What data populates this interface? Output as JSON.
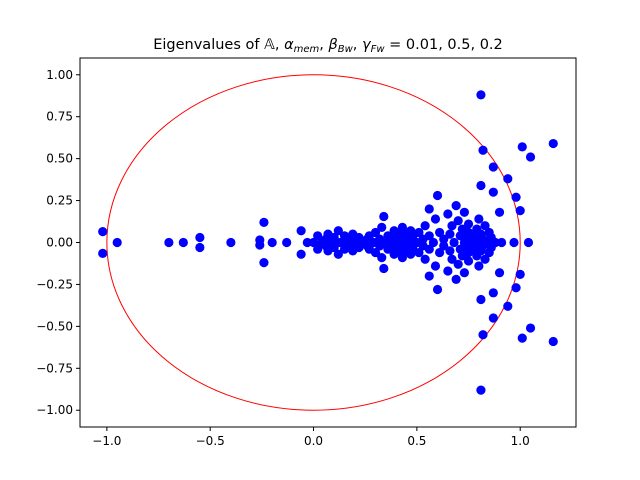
{
  "chart_data": {
    "type": "scatter",
    "title": "Eigenvalues of 𝔸, α",
    "title_parts": {
      "prefix": "Eigenvalues of ",
      "A": "𝔸",
      "alpha": "α",
      "mem": "mem",
      "beta": "β",
      "Bw": "Bw",
      "gamma": "γ",
      "Fw": "Fw",
      "values": "= 0.01, 0.5, 0.2"
    },
    "xlabel": "",
    "ylabel": "",
    "xlim": [
      -1.13,
      1.27
    ],
    "ylim": [
      -1.1,
      1.1
    ],
    "xticks": [
      -1.0,
      -0.5,
      0.0,
      0.5,
      1.0
    ],
    "xtick_labels": [
      "−1.0",
      "−0.5",
      "0.0",
      "0.5",
      "1.0"
    ],
    "yticks": [
      1.0,
      0.75,
      0.5,
      0.25,
      0.0,
      -0.25,
      -0.5,
      -0.75,
      -1.0
    ],
    "ytick_labels": [
      "1.00",
      "0.75",
      "0.50",
      "0.25",
      "0.00",
      "−0.25",
      "−0.50",
      "−0.75",
      "−1.00"
    ],
    "grid": false,
    "colors": {
      "points": "#0000ff",
      "circle": "#ff0000",
      "axes": "#000000"
    },
    "unit_circle": {
      "center": [
        0,
        0
      ],
      "radius": 1
    },
    "series": [
      {
        "values": [
          [
            -1.02,
            0.065
          ],
          [
            -1.02,
            -0.065
          ],
          [
            -0.95,
            0.0
          ],
          [
            -0.7,
            0.0
          ],
          [
            -0.63,
            0.0
          ],
          [
            -0.55,
            0.03
          ],
          [
            -0.55,
            -0.03
          ],
          [
            -0.4,
            0.0
          ],
          [
            -0.26,
            0.015
          ],
          [
            -0.26,
            -0.015
          ],
          [
            -0.24,
            0.12
          ],
          [
            -0.24,
            -0.12
          ],
          [
            -0.2,
            0.0
          ],
          [
            -0.13,
            0.0
          ],
          [
            -0.06,
            0.07
          ],
          [
            -0.06,
            -0.07
          ],
          [
            -0.03,
            0.0
          ],
          [
            0.0,
            0.0
          ],
          [
            0.02,
            0.04
          ],
          [
            0.02,
            -0.04
          ],
          [
            0.04,
            0.0
          ],
          [
            0.06,
            0.02
          ],
          [
            0.06,
            -0.02
          ],
          [
            0.07,
            0.05
          ],
          [
            0.07,
            -0.05
          ],
          [
            0.09,
            0.0
          ],
          [
            0.1,
            0.03
          ],
          [
            0.1,
            -0.03
          ],
          [
            0.12,
            0.07
          ],
          [
            0.12,
            -0.07
          ],
          [
            0.13,
            0.0
          ],
          [
            0.15,
            0.04
          ],
          [
            0.15,
            -0.04
          ],
          [
            0.17,
            0.01
          ],
          [
            0.17,
            -0.01
          ],
          [
            0.19,
            0.05
          ],
          [
            0.19,
            -0.05
          ],
          [
            0.2,
            0.0
          ],
          [
            0.22,
            0.03
          ],
          [
            0.22,
            -0.03
          ],
          [
            0.24,
            0.0
          ],
          [
            0.26,
            0.02
          ],
          [
            0.26,
            -0.02
          ],
          [
            0.27,
            0.04
          ],
          [
            0.27,
            -0.04
          ],
          [
            0.29,
            0.0
          ],
          [
            0.3,
            0.06
          ],
          [
            0.3,
            -0.06
          ],
          [
            0.32,
            0.02
          ],
          [
            0.32,
            -0.02
          ],
          [
            0.33,
            0.09
          ],
          [
            0.33,
            -0.09
          ],
          [
            0.34,
            0.155
          ],
          [
            0.34,
            -0.155
          ],
          [
            0.35,
            0.0
          ],
          [
            0.36,
            0.04
          ],
          [
            0.36,
            -0.04
          ],
          [
            0.38,
            0.02
          ],
          [
            0.38,
            -0.02
          ],
          [
            0.39,
            0.07
          ],
          [
            0.39,
            -0.07
          ],
          [
            0.4,
            0.0
          ],
          [
            0.41,
            0.05
          ],
          [
            0.41,
            -0.05
          ],
          [
            0.42,
            0.03
          ],
          [
            0.42,
            -0.03
          ],
          [
            0.43,
            0.09
          ],
          [
            0.43,
            -0.09
          ],
          [
            0.44,
            0.01
          ],
          [
            0.44,
            -0.01
          ],
          [
            0.45,
            0.05
          ],
          [
            0.45,
            -0.05
          ],
          [
            0.46,
            0.0
          ],
          [
            0.47,
            0.07
          ],
          [
            0.47,
            -0.07
          ],
          [
            0.48,
            0.03
          ],
          [
            0.48,
            -0.03
          ],
          [
            0.5,
            0.0
          ],
          [
            0.51,
            0.06
          ],
          [
            0.51,
            -0.06
          ],
          [
            0.53,
            0.02
          ],
          [
            0.53,
            -0.02
          ],
          [
            0.54,
            0.1
          ],
          [
            0.54,
            -0.1
          ],
          [
            0.56,
            0.04
          ],
          [
            0.56,
            -0.04
          ],
          [
            0.56,
            0.2
          ],
          [
            0.56,
            -0.2
          ],
          [
            0.58,
            0.0
          ],
          [
            0.59,
            0.14
          ],
          [
            0.59,
            -0.14
          ],
          [
            0.6,
            0.28
          ],
          [
            0.6,
            -0.28
          ],
          [
            0.61,
            0.06
          ],
          [
            0.61,
            -0.06
          ],
          [
            0.63,
            0.02
          ],
          [
            0.63,
            -0.02
          ],
          [
            0.65,
            0.17
          ],
          [
            0.65,
            -0.17
          ],
          [
            0.66,
            0.05
          ],
          [
            0.66,
            -0.05
          ],
          [
            0.67,
            0.1
          ],
          [
            0.67,
            -0.1
          ],
          [
            0.68,
            0.0
          ],
          [
            0.69,
            0.22
          ],
          [
            0.69,
            -0.22
          ],
          [
            0.7,
            0.13
          ],
          [
            0.7,
            -0.13
          ],
          [
            0.71,
            0.04
          ],
          [
            0.71,
            -0.04
          ],
          [
            0.72,
            0.08
          ],
          [
            0.72,
            -0.08
          ],
          [
            0.73,
            0.0
          ],
          [
            0.73,
            0.18
          ],
          [
            0.73,
            -0.18
          ],
          [
            0.74,
            0.03
          ],
          [
            0.74,
            -0.03
          ],
          [
            0.75,
            0.06
          ],
          [
            0.75,
            -0.06
          ],
          [
            0.75,
            0.11
          ],
          [
            0.75,
            -0.11
          ],
          [
            0.76,
            0.0
          ],
          [
            0.77,
            0.04
          ],
          [
            0.77,
            -0.04
          ],
          [
            0.78,
            0.02
          ],
          [
            0.78,
            -0.02
          ],
          [
            0.79,
            0.08
          ],
          [
            0.79,
            -0.08
          ],
          [
            0.8,
            0.14
          ],
          [
            0.8,
            -0.14
          ],
          [
            0.8,
            0.0
          ],
          [
            0.81,
            0.05
          ],
          [
            0.81,
            -0.05
          ],
          [
            0.82,
            0.02
          ],
          [
            0.82,
            -0.02
          ],
          [
            0.83,
            0.1
          ],
          [
            0.83,
            -0.1
          ],
          [
            0.84,
            0.0
          ],
          [
            0.85,
            0.06
          ],
          [
            0.85,
            -0.06
          ],
          [
            0.86,
            0.03
          ],
          [
            0.86,
            -0.03
          ],
          [
            0.88,
            0.0
          ],
          [
            0.91,
            0.0
          ],
          [
            0.97,
            0.0
          ],
          [
            1.04,
            0.0
          ],
          [
            0.81,
            0.88
          ],
          [
            0.81,
            -0.88
          ],
          [
            0.82,
            0.55
          ],
          [
            0.82,
            -0.55
          ],
          [
            0.87,
            0.45
          ],
          [
            0.87,
            -0.45
          ],
          [
            0.81,
            0.34
          ],
          [
            0.81,
            -0.34
          ],
          [
            0.87,
            0.3
          ],
          [
            0.87,
            -0.3
          ],
          [
            0.94,
            0.38
          ],
          [
            0.94,
            -0.38
          ],
          [
            0.98,
            0.27
          ],
          [
            0.98,
            -0.27
          ],
          [
            0.9,
            0.18
          ],
          [
            0.9,
            -0.18
          ],
          [
            1.0,
            0.19
          ],
          [
            1.0,
            -0.19
          ],
          [
            1.01,
            0.57
          ],
          [
            1.01,
            -0.57
          ],
          [
            1.05,
            0.51
          ],
          [
            1.05,
            -0.51
          ],
          [
            1.16,
            0.59
          ],
          [
            1.16,
            -0.59
          ]
        ]
      }
    ]
  }
}
